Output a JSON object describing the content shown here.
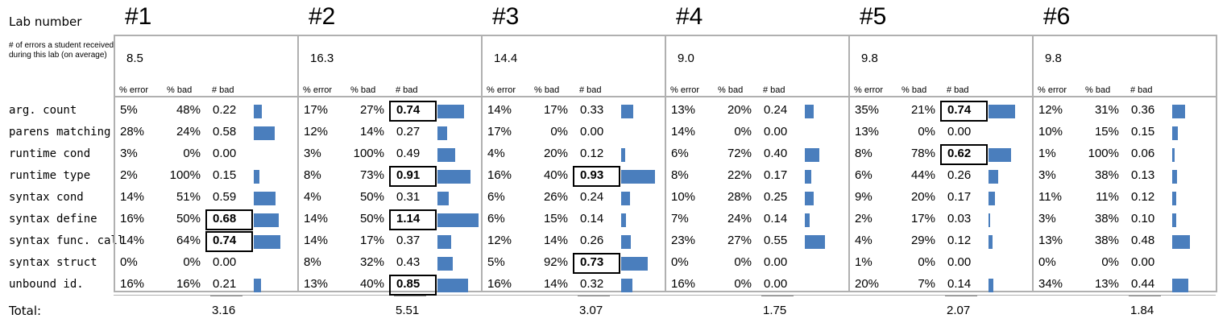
{
  "header": {
    "lab_number_label": "Lab number",
    "errors_label": "# of errors a student received during this lab (on average)",
    "total_label": "Total:",
    "col_headers": [
      "% error",
      "% bad",
      "# bad"
    ]
  },
  "rows": [
    "arg. count",
    "parens matching",
    "runtime cond",
    "runtime type",
    "syntax cond",
    "syntax define",
    "syntax func. call",
    "syntax struct",
    "unbound id."
  ],
  "colors": {
    "bar": "#4a7ebd",
    "border": "#b0b0b0"
  },
  "labs": [
    {
      "title": "#1",
      "avg": "8.5",
      "total": "3.16",
      "cells": [
        [
          "5%",
          "48%",
          "0.22"
        ],
        [
          "28%",
          "24%",
          "0.58"
        ],
        [
          "3%",
          "0%",
          "0.00"
        ],
        [
          "2%",
          "100%",
          "0.15"
        ],
        [
          "14%",
          "51%",
          "0.59"
        ],
        [
          "16%",
          "50%",
          "0.68"
        ],
        [
          "14%",
          "64%",
          "0.74"
        ],
        [
          "0%",
          "0%",
          "0.00"
        ],
        [
          "16%",
          "16%",
          "0.21"
        ]
      ],
      "bold": [
        5,
        6
      ]
    },
    {
      "title": "#2",
      "avg": "16.3",
      "total": "5.51",
      "cells": [
        [
          "17%",
          "27%",
          "0.74"
        ],
        [
          "12%",
          "14%",
          "0.27"
        ],
        [
          "3%",
          "100%",
          "0.49"
        ],
        [
          "8%",
          "73%",
          "0.91"
        ],
        [
          "4%",
          "50%",
          "0.31"
        ],
        [
          "14%",
          "50%",
          "1.14"
        ],
        [
          "14%",
          "17%",
          "0.37"
        ],
        [
          "8%",
          "32%",
          "0.43"
        ],
        [
          "13%",
          "40%",
          "0.85"
        ]
      ],
      "bold": [
        0,
        3,
        5,
        8
      ]
    },
    {
      "title": "#3",
      "avg": "14.4",
      "total": "3.07",
      "cells": [
        [
          "14%",
          "17%",
          "0.33"
        ],
        [
          "17%",
          "0%",
          "0.00"
        ],
        [
          "4%",
          "20%",
          "0.12"
        ],
        [
          "16%",
          "40%",
          "0.93"
        ],
        [
          "6%",
          "26%",
          "0.24"
        ],
        [
          "6%",
          "15%",
          "0.14"
        ],
        [
          "12%",
          "14%",
          "0.26"
        ],
        [
          "5%",
          "92%",
          "0.73"
        ],
        [
          "16%",
          "14%",
          "0.32"
        ]
      ],
      "bold": [
        3,
        7
      ]
    },
    {
      "title": "#4",
      "avg": "9.0",
      "total": "1.75",
      "cells": [
        [
          "13%",
          "20%",
          "0.24"
        ],
        [
          "14%",
          "0%",
          "0.00"
        ],
        [
          "6%",
          "72%",
          "0.40"
        ],
        [
          "8%",
          "22%",
          "0.17"
        ],
        [
          "10%",
          "28%",
          "0.25"
        ],
        [
          "7%",
          "24%",
          "0.14"
        ],
        [
          "23%",
          "27%",
          "0.55"
        ],
        [
          "0%",
          "0%",
          "0.00"
        ],
        [
          "16%",
          "0%",
          "0.00"
        ]
      ],
      "bold": []
    },
    {
      "title": "#5",
      "avg": "9.8",
      "total": "2.07",
      "cells": [
        [
          "35%",
          "21%",
          "0.74"
        ],
        [
          "13%",
          "0%",
          "0.00"
        ],
        [
          "8%",
          "78%",
          "0.62"
        ],
        [
          "6%",
          "44%",
          "0.26"
        ],
        [
          "9%",
          "20%",
          "0.17"
        ],
        [
          "2%",
          "17%",
          "0.03"
        ],
        [
          "4%",
          "29%",
          "0.12"
        ],
        [
          "1%",
          "0%",
          "0.00"
        ],
        [
          "20%",
          "7%",
          "0.14"
        ]
      ],
      "bold": [
        0,
        2
      ]
    },
    {
      "title": "#6",
      "avg": "9.8",
      "total": "1.84",
      "cells": [
        [
          "12%",
          "31%",
          "0.36"
        ],
        [
          "10%",
          "15%",
          "0.15"
        ],
        [
          "1%",
          "100%",
          "0.06"
        ],
        [
          "3%",
          "38%",
          "0.13"
        ],
        [
          "11%",
          "11%",
          "0.12"
        ],
        [
          "3%",
          "38%",
          "0.10"
        ],
        [
          "13%",
          "38%",
          "0.48"
        ],
        [
          "0%",
          "0%",
          "0.00"
        ],
        [
          "34%",
          "13%",
          "0.44"
        ]
      ],
      "bold": []
    }
  ]
}
